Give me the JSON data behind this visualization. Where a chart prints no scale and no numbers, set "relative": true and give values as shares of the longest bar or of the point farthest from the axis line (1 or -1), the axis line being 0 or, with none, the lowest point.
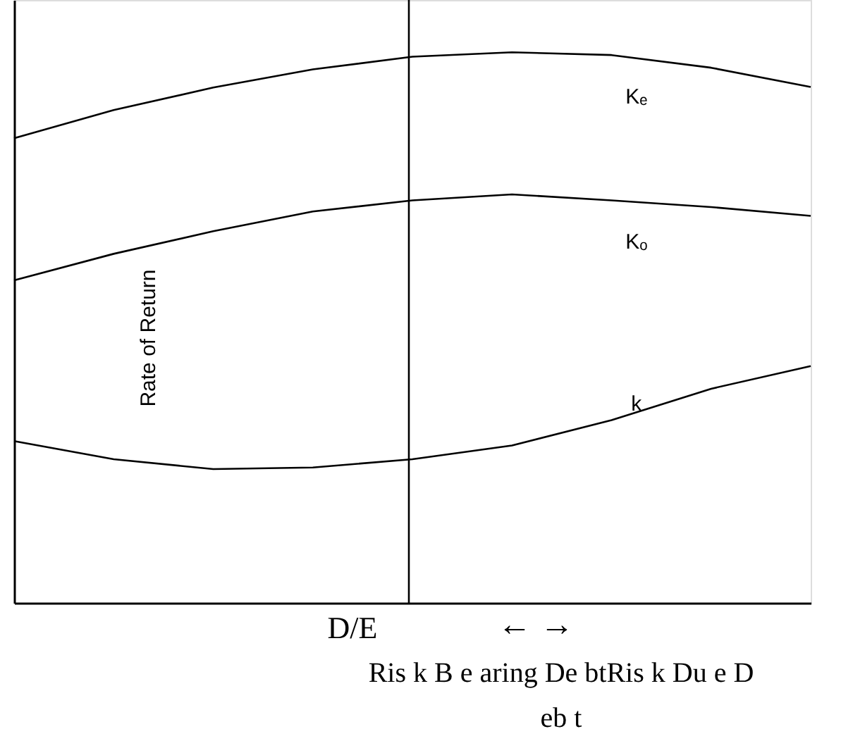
{
  "chart_data": {
    "type": "line",
    "relative": true,
    "xlabel": "D/E",
    "ylabel": "Rate of Return",
    "categories": [
      null,
      null,
      null,
      null,
      null,
      null,
      null,
      null,
      null
    ],
    "tick_labels": false,
    "grid": false,
    "marker": "none",
    "line_style": "solid",
    "series": [
      {
        "name": "Kₑ",
        "color": "#000000",
        "values": [
          0.844,
          0.895,
          0.936,
          0.969,
          0.992,
          1.0,
          0.995,
          0.972,
          0.937
        ]
      },
      {
        "name": "Kₒ",
        "color": "#000000",
        "values": [
          0.586,
          0.634,
          0.675,
          0.711,
          0.731,
          0.742,
          0.731,
          0.719,
          0.703
        ]
      },
      {
        "name": "k",
        "color": "#000000",
        "values": [
          0.294,
          0.261,
          0.243,
          0.246,
          0.261,
          0.286,
          0.332,
          0.389,
          0.43
        ]
      }
    ],
    "annotations": [
      "←  →",
      "Ris k B e aring De btRis k Du e D eb t"
    ]
  }
}
